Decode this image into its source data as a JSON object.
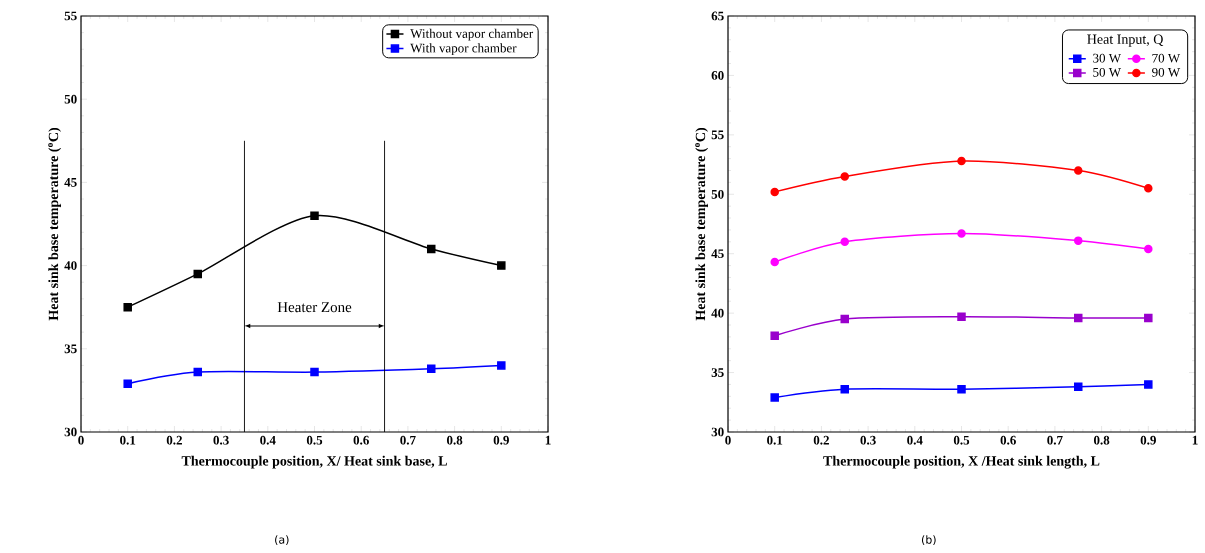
{
  "chart_data": [
    {
      "type": "line",
      "xlabel": "Thermocouple position, X/ Heat sink base, L",
      "ylabel": "Heat sink base temperature ($^{o}$C)",
      "x": [
        0.1,
        0.25,
        0.5,
        0.75,
        0.9
      ],
      "series": [
        {
          "name": "Without vapor chamber",
          "color": "#000000",
          "values": [
            37.5,
            39.5,
            43,
            41,
            40
          ]
        },
        {
          "name": "With vapor chamber",
          "color": "#0000ff",
          "values": [
            32.9,
            33.6,
            33.6,
            33.8,
            34.0
          ]
        }
      ],
      "xlim": [
        0,
        1
      ],
      "xticks": [
        0,
        0.1,
        0.2,
        0.3,
        0.4,
        0.5,
        0.6,
        0.7,
        0.8,
        0.9,
        1
      ],
      "ylim": [
        30,
        55
      ],
      "yticks": [
        30,
        35,
        40,
        45,
        50,
        55
      ],
      "ref_lines": [
        {
          "axis": "x",
          "value": 0.35
        },
        {
          "axis": "x",
          "value": 0.65
        }
      ],
      "annotations": [
        "Heater Zone",
        "(a)"
      ],
      "legend": "top right",
      "marker": "square",
      "line_style": "solid"
    },
    {
      "type": "line",
      "xlabel": "Thermocouple position, X /Heat sink length, L",
      "ylabel": "Heat sink base temperature ($^{o}$C)",
      "legend_title": "Heat Input, Q",
      "x": [
        0.1,
        0.25,
        0.5,
        0.75,
        0.9
      ],
      "series": [
        {
          "name": "30 W",
          "color": "#0000ff",
          "marker": "square",
          "values": [
            32.9,
            33.6,
            33.6,
            33.8,
            34.0
          ]
        },
        {
          "name": "50 W",
          "color": "#9900cc",
          "marker": "square",
          "values": [
            38.1,
            39.5,
            39.7,
            39.6,
            39.6
          ]
        },
        {
          "name": "70 W",
          "color": "#ff00ff",
          "marker": "circle",
          "values": [
            44.3,
            46.0,
            46.7,
            46.1,
            45.4
          ]
        },
        {
          "name": "90 W",
          "color": "#ff0000",
          "marker": "circle",
          "values": [
            50.2,
            51.5,
            52.8,
            52.0,
            50.5
          ]
        }
      ],
      "xlim": [
        0,
        1
      ],
      "xticks": [
        0,
        0.1,
        0.2,
        0.3,
        0.4,
        0.5,
        0.6,
        0.7,
        0.8,
        0.9,
        1
      ],
      "ylim": [
        30,
        65
      ],
      "yticks": [
        30,
        35,
        40,
        45,
        50,
        55,
        60,
        65
      ],
      "annotations": [
        "(b)"
      ],
      "legend": "top right",
      "line_style": "solid"
    }
  ]
}
